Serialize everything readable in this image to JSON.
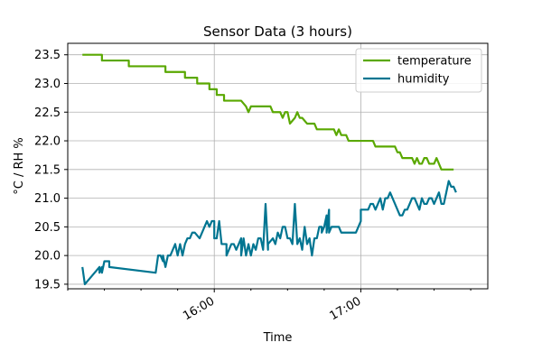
{
  "chart_data": {
    "type": "line",
    "title": "Sensor Data (3 hours)",
    "xlabel": "Time",
    "ylabel": "°C / RH %",
    "xlim": [
      "15:00",
      "17:52"
    ],
    "ylim": [
      19.42,
      23.7
    ],
    "y_ticks": [
      19.5,
      20.0,
      20.5,
      21.0,
      21.5,
      22.0,
      22.5,
      23.0,
      23.5
    ],
    "y_tick_labels": [
      "19.5",
      "20.0",
      "20.5",
      "21.0",
      "21.5",
      "22.0",
      "22.5",
      "23.0",
      "23.5"
    ],
    "x_major_ticks": [
      "16:00",
      "17:00"
    ],
    "x_major_tick_labels": [
      "16:00",
      "17:00"
    ],
    "x_minor_ticks": [
      "15:00",
      "15:15",
      "15:30",
      "15:45",
      "16:15",
      "16:30",
      "16:45",
      "17:15",
      "17:30",
      "17:45"
    ],
    "grid": true,
    "legend": "top-right",
    "series": [
      {
        "name": "temperature",
        "color": "#5aa800",
        "points": [
          [
            "15:06",
            23.5
          ],
          [
            "15:14",
            23.5
          ],
          [
            "15:14",
            23.4
          ],
          [
            "15:25",
            23.4
          ],
          [
            "15:25",
            23.3
          ],
          [
            "15:40",
            23.3
          ],
          [
            "15:40",
            23.2
          ],
          [
            "15:48",
            23.2
          ],
          [
            "15:48",
            23.1
          ],
          [
            "15:53",
            23.1
          ],
          [
            "15:53",
            23.0
          ],
          [
            "15:58",
            23.0
          ],
          [
            "15:58",
            22.9
          ],
          [
            "16:01",
            22.9
          ],
          [
            "16:01",
            22.8
          ],
          [
            "16:04",
            22.8
          ],
          [
            "16:04",
            22.7
          ],
          [
            "16:11",
            22.7
          ],
          [
            "16:13",
            22.6
          ],
          [
            "16:14",
            22.5
          ],
          [
            "16:15",
            22.6
          ],
          [
            "16:23",
            22.6
          ],
          [
            "16:24",
            22.5
          ],
          [
            "16:27",
            22.5
          ],
          [
            "16:28",
            22.4
          ],
          [
            "16:29",
            22.5
          ],
          [
            "16:30",
            22.5
          ],
          [
            "16:31",
            22.3
          ],
          [
            "16:33",
            22.4
          ],
          [
            "16:34",
            22.5
          ],
          [
            "16:35",
            22.4
          ],
          [
            "16:36",
            22.4
          ],
          [
            "16:38",
            22.3
          ],
          [
            "16:41",
            22.3
          ],
          [
            "16:42",
            22.2
          ],
          [
            "16:49",
            22.2
          ],
          [
            "16:50",
            22.1
          ],
          [
            "16:51",
            22.2
          ],
          [
            "16:52",
            22.1
          ],
          [
            "16:54",
            22.1
          ],
          [
            "16:55",
            22.0
          ],
          [
            "17:05",
            22.0
          ],
          [
            "17:06",
            21.9
          ],
          [
            "17:14",
            21.9
          ],
          [
            "17:15",
            21.8
          ],
          [
            "17:16",
            21.8
          ],
          [
            "17:17",
            21.7
          ],
          [
            "17:21",
            21.7
          ],
          [
            "17:22",
            21.6
          ],
          [
            "17:23",
            21.7
          ],
          [
            "17:24",
            21.6
          ],
          [
            "17:25",
            21.6
          ],
          [
            "17:26",
            21.7
          ],
          [
            "17:27",
            21.7
          ],
          [
            "17:28",
            21.6
          ],
          [
            "17:30",
            21.6
          ],
          [
            "17:31",
            21.7
          ],
          [
            "17:33",
            21.5
          ],
          [
            "17:38",
            21.5
          ]
        ]
      },
      {
        "name": "humidity",
        "color": "#007591",
        "points": [
          [
            "15:06",
            19.8
          ],
          [
            "15:07",
            19.5
          ],
          [
            "15:09",
            19.6
          ],
          [
            "15:11",
            19.7
          ],
          [
            "15:13",
            19.8
          ],
          [
            "15:13",
            19.7
          ],
          [
            "15:14",
            19.8
          ],
          [
            "15:14",
            19.7
          ],
          [
            "15:15",
            19.9
          ],
          [
            "15:17",
            19.9
          ],
          [
            "15:17",
            19.8
          ],
          [
            "15:36",
            19.7
          ],
          [
            "15:37",
            20.0
          ],
          [
            "15:38",
            20.0
          ],
          [
            "15:39",
            19.9
          ],
          [
            "15:39",
            20.0
          ],
          [
            "15:40",
            19.8
          ],
          [
            "15:41",
            20.0
          ],
          [
            "15:42",
            20.0
          ],
          [
            "15:43",
            20.1
          ],
          [
            "15:44",
            20.2
          ],
          [
            "15:45",
            20.0
          ],
          [
            "15:46",
            20.2
          ],
          [
            "15:47",
            20.0
          ],
          [
            "15:48",
            20.2
          ],
          [
            "15:49",
            20.3
          ],
          [
            "15:50",
            20.3
          ],
          [
            "15:51",
            20.4
          ],
          [
            "15:52",
            20.4
          ],
          [
            "15:54",
            20.3
          ],
          [
            "15:56",
            20.5
          ],
          [
            "15:57",
            20.6
          ],
          [
            "15:58",
            20.5
          ],
          [
            "15:59",
            20.6
          ],
          [
            "16:00",
            20.6
          ],
          [
            "16:00",
            20.3
          ],
          [
            "16:01",
            20.3
          ],
          [
            "16:02",
            20.6
          ],
          [
            "16:03",
            20.2
          ],
          [
            "16:05",
            20.2
          ],
          [
            "16:05",
            20.0
          ],
          [
            "16:07",
            20.2
          ],
          [
            "16:08",
            20.2
          ],
          [
            "16:09",
            20.1
          ],
          [
            "16:10",
            20.2
          ],
          [
            "16:11",
            20.3
          ],
          [
            "16:11",
            20.0
          ],
          [
            "16:12",
            20.3
          ],
          [
            "16:13",
            20.0
          ],
          [
            "16:14",
            20.2
          ],
          [
            "16:15",
            20.0
          ],
          [
            "16:16",
            20.2
          ],
          [
            "16:17",
            20.1
          ],
          [
            "16:18",
            20.3
          ],
          [
            "16:19",
            20.3
          ],
          [
            "16:20",
            20.1
          ],
          [
            "16:21",
            20.9
          ],
          [
            "16:22",
            20.1
          ],
          [
            "16:22",
            20.2
          ],
          [
            "16:24",
            20.3
          ],
          [
            "16:25",
            20.2
          ],
          [
            "16:26",
            20.4
          ],
          [
            "16:27",
            20.3
          ],
          [
            "16:28",
            20.5
          ],
          [
            "16:29",
            20.5
          ],
          [
            "16:30",
            20.3
          ],
          [
            "16:31",
            20.3
          ],
          [
            "16:32",
            20.2
          ],
          [
            "16:33",
            20.9
          ],
          [
            "16:34",
            20.2
          ],
          [
            "16:35",
            20.3
          ],
          [
            "16:36",
            20.1
          ],
          [
            "16:37",
            20.5
          ],
          [
            "16:38",
            20.2
          ],
          [
            "16:39",
            20.3
          ],
          [
            "16:40",
            20.0
          ],
          [
            "16:41",
            20.3
          ],
          [
            "16:42",
            20.3
          ],
          [
            "16:43",
            20.5
          ],
          [
            "16:44",
            20.5
          ],
          [
            "16:44",
            20.4
          ],
          [
            "16:45",
            20.5
          ],
          [
            "16:46",
            20.7
          ],
          [
            "16:46",
            20.4
          ],
          [
            "16:47",
            20.8
          ],
          [
            "16:47",
            20.4
          ],
          [
            "16:48",
            20.5
          ],
          [
            "16:51",
            20.5
          ],
          [
            "16:52",
            20.4
          ],
          [
            "16:58",
            20.4
          ],
          [
            "17:00",
            20.6
          ],
          [
            "17:00",
            20.8
          ],
          [
            "17:03",
            20.8
          ],
          [
            "17:04",
            20.9
          ],
          [
            "17:05",
            20.9
          ],
          [
            "17:06",
            20.8
          ],
          [
            "17:07",
            20.9
          ],
          [
            "17:08",
            21.0
          ],
          [
            "17:09",
            20.8
          ],
          [
            "17:10",
            21.0
          ],
          [
            "17:11",
            21.0
          ],
          [
            "17:12",
            21.1
          ],
          [
            "17:13",
            21.0
          ],
          [
            "17:14",
            20.9
          ],
          [
            "17:15",
            20.8
          ],
          [
            "17:16",
            20.7
          ],
          [
            "17:17",
            20.7
          ],
          [
            "17:18",
            20.8
          ],
          [
            "17:19",
            20.8
          ],
          [
            "17:20",
            20.9
          ],
          [
            "17:21",
            21.0
          ],
          [
            "17:22",
            21.0
          ],
          [
            "17:23",
            20.9
          ],
          [
            "17:24",
            20.8
          ],
          [
            "17:25",
            21.0
          ],
          [
            "17:26",
            20.9
          ],
          [
            "17:27",
            20.9
          ],
          [
            "17:28",
            21.0
          ],
          [
            "17:29",
            21.0
          ],
          [
            "17:30",
            20.9
          ],
          [
            "17:31",
            21.0
          ],
          [
            "17:32",
            21.1
          ],
          [
            "17:33",
            20.9
          ],
          [
            "17:34",
            20.9
          ],
          [
            "17:35",
            21.1
          ],
          [
            "17:36",
            21.3
          ],
          [
            "17:37",
            21.2
          ],
          [
            "17:38",
            21.2
          ],
          [
            "17:39",
            21.1
          ]
        ]
      }
    ]
  }
}
